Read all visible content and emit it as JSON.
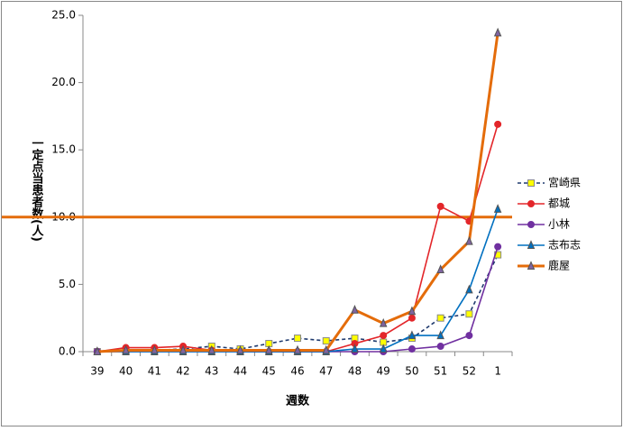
{
  "chart_data": {
    "type": "line",
    "ylabel": "一定点当患者数(人)",
    "xlabel": "週数",
    "categories": [
      "39",
      "40",
      "41",
      "42",
      "43",
      "44",
      "45",
      "46",
      "47",
      "48",
      "49",
      "50",
      "51",
      "52",
      "1"
    ],
    "ylim": [
      0,
      25
    ],
    "yticks": [
      {
        "value": 0,
        "label": "0.0"
      },
      {
        "value": 5,
        "label": "5.0"
      },
      {
        "value": 10,
        "label": "10.0"
      },
      {
        "value": 15,
        "label": "15.0"
      },
      {
        "value": 20,
        "label": "20.0"
      },
      {
        "value": 25,
        "label": "25.0"
      }
    ],
    "reference_line": {
      "value": 10,
      "color": "#E46C0A"
    },
    "legend": "right",
    "series": [
      {
        "name": "宮崎県",
        "color": "#1F3A6E",
        "marker_color": "#FFFF00",
        "marker": "square",
        "dash": true,
        "values": [
          0.0,
          0.1,
          0.1,
          0.2,
          0.4,
          0.2,
          0.6,
          1.0,
          0.8,
          1.0,
          0.7,
          1.0,
          2.5,
          2.8,
          7.2
        ]
      },
      {
        "name": "都城",
        "color": "#E3262A",
        "marker_color": "#E3262A",
        "marker": "circle",
        "dash": false,
        "values": [
          0.0,
          0.3,
          0.3,
          0.4,
          0.1,
          0.0,
          0.0,
          0.0,
          0.0,
          0.6,
          1.2,
          2.5,
          10.8,
          9.7,
          16.9
        ]
      },
      {
        "name": "小林",
        "color": "#7030A0",
        "marker_color": "#7030A0",
        "marker": "circle",
        "dash": false,
        "values": [
          0.0,
          0.0,
          0.0,
          0.0,
          0.0,
          0.0,
          0.0,
          0.0,
          0.0,
          0.0,
          0.0,
          0.2,
          0.4,
          1.2,
          7.8
        ]
      },
      {
        "name": "志布志",
        "color": "#0070C0",
        "marker_color": "#0070C0",
        "marker": "triangle",
        "dash": false,
        "values": [
          0.0,
          0.0,
          0.0,
          0.0,
          0.0,
          0.0,
          0.0,
          0.0,
          0.0,
          0.2,
          0.2,
          1.2,
          1.2,
          4.6,
          10.6
        ]
      },
      {
        "name": "鹿屋",
        "color": "#E46C0A",
        "marker_color": "#8064A2",
        "marker": "triangle",
        "dash": false,
        "values": [
          0.0,
          0.1,
          0.1,
          0.1,
          0.1,
          0.1,
          0.1,
          0.1,
          0.1,
          3.1,
          2.1,
          3.0,
          6.1,
          8.2,
          23.7
        ]
      }
    ]
  }
}
